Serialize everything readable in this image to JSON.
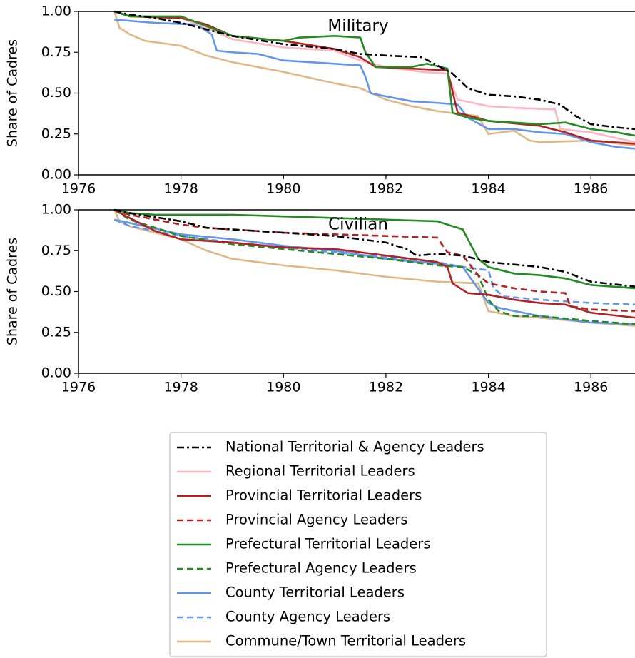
{
  "chart_data": [
    {
      "type": "line",
      "title": "Military",
      "ylabel": "Share of Cadres",
      "xlim": [
        1976,
        1986.86
      ],
      "xticks": [
        1976,
        1978,
        1980,
        1982,
        1984,
        1986
      ],
      "ylim": [
        0,
        1
      ],
      "yticks": [
        {
          "value": 0,
          "label": "0.00"
        },
        {
          "value": 0.25,
          "label": "0.25"
        },
        {
          "value": 0.5,
          "label": "0.50"
        },
        {
          "value": 0.75,
          "label": "0.75"
        },
        {
          "value": 1,
          "label": "1.00"
        }
      ],
      "series": [
        {
          "name": "Commune/Town Territorial Leaders",
          "color": "#deb887",
          "dash": "solid",
          "x": [
            1976.7,
            1976.8,
            1977,
            1977.3,
            1978,
            1978.5,
            1979,
            1980,
            1981,
            1981.5,
            1982,
            1982.5,
            1983,
            1983.5,
            1983.8,
            1984,
            1984.5,
            1984.8,
            1985,
            1986,
            1986.86
          ],
          "values": [
            1,
            0.9,
            0.86,
            0.82,
            0.79,
            0.73,
            0.69,
            0.63,
            0.56,
            0.53,
            0.46,
            0.42,
            0.39,
            0.37,
            0.36,
            0.25,
            0.27,
            0.21,
            0.2,
            0.21,
            0.18
          ]
        },
        {
          "name": "County Territorial Leaders",
          "color": "#6495ed",
          "dash": "solid",
          "x": [
            1976.7,
            1977.5,
            1978.3,
            1978.6,
            1978.7,
            1979,
            1979.5,
            1980,
            1981,
            1981.5,
            1981.6,
            1981.7,
            1982,
            1982.5,
            1983,
            1983.4,
            1983.6,
            1984,
            1984.5,
            1985,
            1985.5,
            1986,
            1986.5,
            1986.86
          ],
          "values": [
            0.95,
            0.93,
            0.92,
            0.86,
            0.76,
            0.75,
            0.74,
            0.7,
            0.68,
            0.67,
            0.6,
            0.5,
            0.48,
            0.45,
            0.44,
            0.43,
            0.35,
            0.28,
            0.28,
            0.26,
            0.25,
            0.2,
            0.17,
            0.16
          ]
        },
        {
          "name": "Regional Territorial Leaders",
          "color": "#ffb6c1",
          "dash": "solid",
          "x": [
            1976.7,
            1977,
            1978,
            1978.5,
            1979,
            1980,
            1981,
            1981.5,
            1982,
            1982.7,
            1983.2,
            1983.4,
            1984,
            1984.5,
            1985.3,
            1985.4,
            1986,
            1986.86
          ],
          "values": [
            1,
            0.97,
            0.96,
            0.9,
            0.83,
            0.78,
            0.76,
            0.7,
            0.66,
            0.63,
            0.62,
            0.46,
            0.42,
            0.41,
            0.4,
            0.28,
            0.26,
            0.2
          ]
        },
        {
          "name": "Provincial Territorial Leaders",
          "color": "#b22222",
          "dash": "solid",
          "x": [
            1976.7,
            1977,
            1978,
            1978.5,
            1979,
            1980,
            1981,
            1981.5,
            1981.8,
            1982.5,
            1983.2,
            1983.4,
            1984,
            1985,
            1985.5,
            1986,
            1986.86
          ],
          "values": [
            1,
            0.97,
            0.96,
            0.92,
            0.85,
            0.82,
            0.77,
            0.72,
            0.66,
            0.65,
            0.64,
            0.38,
            0.33,
            0.3,
            0.26,
            0.21,
            0.19
          ]
        },
        {
          "name": "Prefectural Territorial Leaders",
          "color": "#228b22",
          "dash": "solid",
          "x": [
            1976.7,
            1977,
            1978,
            1978.5,
            1979,
            1980,
            1980.3,
            1981,
            1981.5,
            1981.6,
            1981.8,
            1982.5,
            1982.8,
            1983.2,
            1983.3,
            1983.6,
            1984,
            1985,
            1985.5,
            1986,
            1986.5,
            1986.86
          ],
          "values": [
            1,
            0.97,
            0.97,
            0.91,
            0.85,
            0.82,
            0.84,
            0.85,
            0.84,
            0.75,
            0.66,
            0.66,
            0.68,
            0.65,
            0.38,
            0.35,
            0.33,
            0.31,
            0.32,
            0.28,
            0.26,
            0.24
          ]
        },
        {
          "name": "National Territorial & Agency Leaders",
          "color": "#000000",
          "dash": "dashdot",
          "x": [
            1976.7,
            1977,
            1977.5,
            1978,
            1978.5,
            1979,
            1980,
            1981,
            1981.5,
            1982,
            1982.7,
            1983,
            1983.3,
            1983.6,
            1984,
            1984.5,
            1985,
            1985.4,
            1985.7,
            1986,
            1986.5,
            1986.86
          ],
          "values": [
            1,
            0.98,
            0.96,
            0.93,
            0.89,
            0.85,
            0.8,
            0.77,
            0.74,
            0.73,
            0.72,
            0.67,
            0.62,
            0.53,
            0.49,
            0.48,
            0.46,
            0.43,
            0.36,
            0.31,
            0.29,
            0.28
          ]
        }
      ]
    },
    {
      "type": "line",
      "title": "Civilian",
      "ylabel": "Share of Cadres",
      "xlim": [
        1976,
        1986.86
      ],
      "xticks": [
        1976,
        1978,
        1980,
        1982,
        1984,
        1986
      ],
      "ylim": [
        0,
        1
      ],
      "yticks": [
        {
          "value": 0,
          "label": "0.00"
        },
        {
          "value": 0.25,
          "label": "0.25"
        },
        {
          "value": 0.5,
          "label": "0.50"
        },
        {
          "value": 0.75,
          "label": "0.75"
        },
        {
          "value": 1,
          "label": "1.00"
        }
      ],
      "series": [
        {
          "name": "Commune/Town Territorial Leaders",
          "color": "#deb887",
          "dash": "solid",
          "x": [
            1976.7,
            1976.8,
            1977,
            1978,
            1978.5,
            1979,
            1980,
            1981,
            1982,
            1983,
            1983.8,
            1984,
            1984.5,
            1985,
            1986,
            1986.86
          ],
          "values": [
            1,
            0.93,
            0.9,
            0.82,
            0.75,
            0.7,
            0.66,
            0.63,
            0.59,
            0.56,
            0.55,
            0.38,
            0.35,
            0.34,
            0.31,
            0.29
          ]
        },
        {
          "name": "County Territorial Leaders",
          "color": "#6495ed",
          "dash": "solid",
          "x": [
            1976.7,
            1977,
            1978,
            1979,
            1980,
            1981,
            1982,
            1983,
            1983.5,
            1983.7,
            1984,
            1984.2,
            1985,
            1986,
            1986.86
          ],
          "values": [
            0.94,
            0.92,
            0.85,
            0.82,
            0.78,
            0.75,
            0.7,
            0.67,
            0.65,
            0.56,
            0.43,
            0.4,
            0.35,
            0.31,
            0.3
          ]
        },
        {
          "name": "County Agency Leaders",
          "color": "#6495ed",
          "dash": "dashed",
          "x": [
            1976.7,
            1977,
            1978,
            1979,
            1980,
            1981,
            1982,
            1983,
            1983.5,
            1984,
            1984.1,
            1984.3,
            1985,
            1985.5,
            1986,
            1986.86
          ],
          "values": [
            0.94,
            0.9,
            0.84,
            0.8,
            0.77,
            0.74,
            0.71,
            0.68,
            0.65,
            0.63,
            0.52,
            0.47,
            0.45,
            0.44,
            0.43,
            0.42
          ]
        },
        {
          "name": "Prefectural Agency Leaders",
          "color": "#228b22",
          "dash": "dashed",
          "x": [
            1976.7,
            1977,
            1978,
            1979,
            1980,
            1981,
            1982,
            1983,
            1983.5,
            1983.8,
            1984,
            1984.2,
            1984.5,
            1985,
            1986,
            1986.86
          ],
          "values": [
            1,
            0.94,
            0.84,
            0.79,
            0.76,
            0.73,
            0.7,
            0.66,
            0.65,
            0.6,
            0.45,
            0.38,
            0.35,
            0.35,
            0.32,
            0.3
          ]
        },
        {
          "name": "Provincial Territorial Leaders",
          "color": "#b22222",
          "dash": "solid",
          "x": [
            1976.7,
            1977,
            1977.5,
            1978,
            1979,
            1980,
            1981,
            1982,
            1983,
            1983.2,
            1983.3,
            1983.6,
            1984,
            1984.5,
            1985,
            1985.5,
            1986,
            1986.86
          ],
          "values": [
            1,
            0.95,
            0.87,
            0.82,
            0.8,
            0.77,
            0.76,
            0.72,
            0.68,
            0.65,
            0.55,
            0.49,
            0.48,
            0.45,
            0.43,
            0.42,
            0.37,
            0.34
          ]
        },
        {
          "name": "Provincial Agency Leaders",
          "color": "#b22222",
          "dash": "dashed",
          "x": [
            1976.7,
            1977,
            1978,
            1978.5,
            1980,
            1981,
            1982,
            1983,
            1983.2,
            1983.5,
            1983.8,
            1984,
            1984.5,
            1985,
            1985.5,
            1985.6,
            1986,
            1986.86
          ],
          "values": [
            1,
            0.97,
            0.91,
            0.89,
            0.86,
            0.85,
            0.84,
            0.83,
            0.74,
            0.72,
            0.6,
            0.55,
            0.52,
            0.5,
            0.49,
            0.41,
            0.39,
            0.38
          ]
        },
        {
          "name": "Prefectural Territorial Leaders",
          "color": "#228b22",
          "dash": "solid",
          "x": [
            1976.7,
            1977,
            1977.5,
            1979,
            1980,
            1981,
            1982,
            1983,
            1983.5,
            1983.8,
            1984,
            1984.5,
            1985,
            1985.5,
            1986,
            1986.86
          ],
          "values": [
            1,
            0.98,
            0.97,
            0.97,
            0.96,
            0.95,
            0.94,
            0.93,
            0.88,
            0.7,
            0.65,
            0.61,
            0.6,
            0.58,
            0.54,
            0.52
          ]
        },
        {
          "name": "National Territorial & Agency Leaders",
          "color": "#000000",
          "dash": "dashdot",
          "x": [
            1976.7,
            1977,
            1978,
            1978.5,
            1980,
            1981,
            1982,
            1982.4,
            1982.6,
            1983,
            1983.5,
            1984,
            1985,
            1985.5,
            1986,
            1986.86
          ],
          "values": [
            1,
            0.98,
            0.93,
            0.89,
            0.86,
            0.84,
            0.8,
            0.76,
            0.72,
            0.73,
            0.72,
            0.68,
            0.65,
            0.62,
            0.56,
            0.53
          ]
        }
      ]
    }
  ],
  "legend": {
    "entries": [
      {
        "name": "National Territorial & Agency Leaders",
        "color": "#000000",
        "dash": "dashdot"
      },
      {
        "name": "Regional Territorial Leaders",
        "color": "#ffb6c1",
        "dash": "solid"
      },
      {
        "name": "Provincial Territorial Leaders",
        "color": "#b22222",
        "dash": "solid"
      },
      {
        "name": "Provincial Agency Leaders",
        "color": "#b22222",
        "dash": "dashed"
      },
      {
        "name": "Prefectural Territorial Leaders",
        "color": "#228b22",
        "dash": "solid"
      },
      {
        "name": "Prefectural Agency Leaders",
        "color": "#228b22",
        "dash": "dashed"
      },
      {
        "name": "County Territorial Leaders",
        "color": "#6495ed",
        "dash": "solid"
      },
      {
        "name": "County Agency Leaders",
        "color": "#6495ed",
        "dash": "dashed"
      },
      {
        "name": "Commune/Town Territorial Leaders",
        "color": "#deb887",
        "dash": "solid"
      }
    ]
  }
}
